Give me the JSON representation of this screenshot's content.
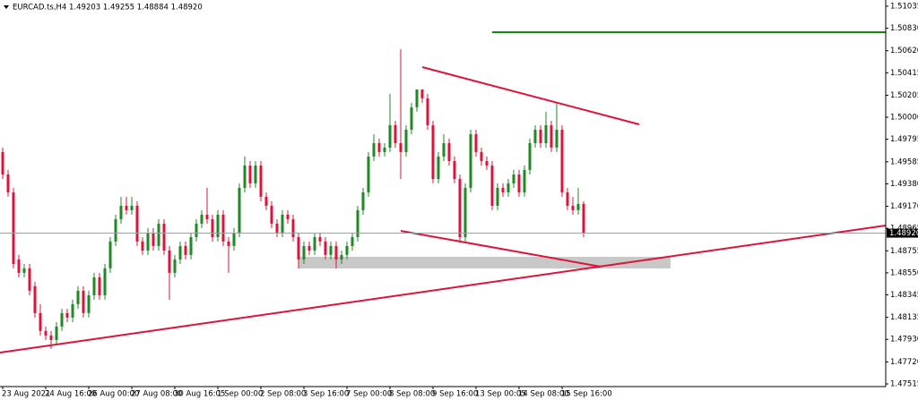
{
  "chart_data": {
    "type": "candlestick",
    "title": "EURCAD.ts,H4  1.49203 1.49255 1.48884 1.48920",
    "up_color": "#1f8a24",
    "down_color": "#dc143c",
    "grid": false,
    "ylim": [
      1.4749,
      1.51093
    ],
    "yticks": [
      1.51035,
      {
        "value": 1.5083,
        "label": "1.50830"
      },
      {
        "value": 1.5062,
        "label": "1.50620"
      },
      1.50415,
      1.50205,
      {
        "value": 1.5,
        "label": "1.50000"
      },
      1.49795,
      1.49585,
      {
        "value": 1.4938,
        "label": "1.49380"
      },
      {
        "value": 1.4917,
        "label": "1.49170"
      },
      1.48965,
      1.48755,
      {
        "value": 1.4855,
        "label": "1.48550"
      },
      1.48345,
      1.48135,
      {
        "value": 1.4793,
        "label": "1.47930"
      },
      {
        "value": 1.4772,
        "label": "1.47720"
      },
      1.47515
    ],
    "current_price": {
      "value": 1.4892,
      "label": "1.48920"
    },
    "categories": [
      "23 Aug 2021",
      null,
      null,
      null,
      null,
      null,
      null,
      null,
      "24 Aug 16:00",
      null,
      null,
      null,
      null,
      null,
      null,
      null,
      "26 Aug 00:00",
      null,
      null,
      null,
      null,
      null,
      null,
      null,
      "27 Aug 08:00",
      null,
      null,
      null,
      null,
      null,
      null,
      null,
      "30 Aug 16:05",
      null,
      null,
      null,
      null,
      null,
      null,
      null,
      "1 Sep 00:00",
      null,
      null,
      null,
      null,
      null,
      null,
      null,
      "2 Sep 08:00",
      null,
      null,
      null,
      null,
      null,
      null,
      null,
      "3 Sep 16:00",
      null,
      null,
      null,
      null,
      null,
      null,
      null,
      "7 Sep 00:00",
      null,
      null,
      null,
      null,
      null,
      null,
      null,
      "8 Sep 08:00",
      null,
      null,
      null,
      null,
      null,
      null,
      null,
      "9 Sep 16:00",
      null,
      null,
      null,
      null,
      null,
      null,
      null,
      "13 Sep 00:05",
      null,
      null,
      null,
      null,
      null,
      null,
      null,
      "14 Sep 08:00",
      null,
      null,
      null,
      null,
      null,
      null,
      null,
      "15 Sep 16:00",
      null,
      null,
      null,
      null
    ],
    "open": [
      1.49676,
      1.49467,
      1.493,
      1.48675,
      1.4855,
      1.48592,
      1.48425,
      1.48175,
      1.48008,
      1.47966,
      1.47924,
      1.48049,
      1.48175,
      1.48133,
      1.48258,
      1.48383,
      1.48175,
      1.48341,
      1.48508,
      1.48341,
      1.48592,
      1.48842,
      1.4905,
      1.49175,
      1.49134,
      1.49175,
      1.48842,
      1.48758,
      1.48925,
      1.488,
      1.49008,
      1.48758,
      1.4855,
      1.48675,
      1.488,
      1.48717,
      1.48883,
      1.49008,
      1.49092,
      1.4905,
      1.48883,
      1.49092,
      1.48842,
      1.488,
      1.48925,
      1.49342,
      1.4955,
      1.49384,
      1.4955,
      1.49259,
      1.49175,
      1.49008,
      1.48925,
      1.49092,
      1.4905,
      1.48883,
      1.48675,
      1.488,
      1.48758,
      1.48883,
      1.48842,
      1.48717,
      1.488,
      1.48675,
      1.48717,
      1.488,
      1.48883,
      1.49134,
      1.493,
      1.49634,
      1.49759,
      1.49676,
      1.49717,
      1.49926,
      1.49759,
      1.49676,
      1.49884,
      1.50093,
      1.50259,
      1.50176,
      1.49926,
      1.49425,
      1.49634,
      1.49759,
      1.49592,
      1.49425,
      1.48883,
      1.49342,
      1.49842,
      1.49676,
      1.49592,
      1.4955,
      1.49175,
      1.49342,
      1.493,
      1.49384,
      1.49467,
      1.493,
      1.49509,
      1.49759,
      1.49884,
      1.49759,
      1.49926,
      1.49717,
      1.49884,
      1.493,
      1.49175,
      1.49134,
      1.49192
    ],
    "high": [
      1.49717,
      1.49509,
      1.49342,
      1.48717,
      1.48633,
      1.48633,
      1.48467,
      1.48258,
      1.48049,
      1.48008,
      1.48091,
      1.48216,
      1.48216,
      1.483,
      1.48425,
      1.48425,
      1.48383,
      1.4855,
      1.4855,
      1.48633,
      1.48883,
      1.49092,
      1.49259,
      1.49259,
      1.49259,
      1.49217,
      1.48883,
      1.48967,
      1.48967,
      1.4905,
      1.4905,
      1.488,
      1.48717,
      1.48842,
      1.48842,
      1.48925,
      1.4905,
      1.49134,
      1.49342,
      1.49092,
      1.49134,
      1.49134,
      1.48883,
      1.48967,
      1.49384,
      1.49634,
      1.49592,
      1.49592,
      1.49592,
      1.493,
      1.49217,
      1.4905,
      1.49134,
      1.49134,
      1.49092,
      1.48925,
      1.48842,
      1.48842,
      1.48925,
      1.48925,
      1.48883,
      1.48842,
      1.48842,
      1.48758,
      1.48842,
      1.48925,
      1.49175,
      1.49342,
      1.49676,
      1.49842,
      1.49801,
      1.49759,
      1.50218,
      1.49967,
      1.50635,
      1.49926,
      1.50134,
      1.50259,
      1.50259,
      1.50218,
      1.49967,
      1.49676,
      1.49842,
      1.49801,
      1.49634,
      1.49467,
      1.49384,
      1.49884,
      1.49884,
      1.49717,
      1.49634,
      1.49592,
      1.49384,
      1.49384,
      1.49425,
      1.49509,
      1.49509,
      1.4955,
      1.49801,
      1.49926,
      1.49926,
      1.50051,
      1.49967,
      1.50134,
      1.49926,
      1.49342,
      1.49259,
      1.49342,
      1.49217
    ],
    "low": [
      1.49425,
      1.49259,
      1.48592,
      1.48508,
      1.48508,
      1.48341,
      1.48133,
      1.47966,
      1.47924,
      1.47841,
      1.47883,
      1.48008,
      1.48091,
      1.48091,
      1.48216,
      1.48133,
      1.48133,
      1.483,
      1.483,
      1.483,
      1.4855,
      1.488,
      1.49008,
      1.49092,
      1.49092,
      1.488,
      1.48717,
      1.48717,
      1.48758,
      1.48758,
      1.48717,
      1.483,
      1.48508,
      1.48633,
      1.48675,
      1.48675,
      1.48842,
      1.48967,
      1.49008,
      1.48842,
      1.48842,
      1.488,
      1.4855,
      1.48758,
      1.48883,
      1.493,
      1.49342,
      1.49342,
      1.49217,
      1.49134,
      1.48967,
      1.48883,
      1.48883,
      1.49008,
      1.48842,
      1.48592,
      1.48633,
      1.48717,
      1.48717,
      1.488,
      1.48675,
      1.48675,
      1.48592,
      1.48633,
      1.48675,
      1.48758,
      1.48842,
      1.49092,
      1.49259,
      1.49592,
      1.49634,
      1.49634,
      1.49676,
      1.49717,
      1.49425,
      1.49634,
      1.49842,
      1.50051,
      1.50134,
      1.49884,
      1.49384,
      1.49384,
      1.49592,
      1.4955,
      1.49384,
      1.48842,
      1.48842,
      1.493,
      1.49634,
      1.4955,
      1.49509,
      1.49134,
      1.49134,
      1.49259,
      1.49259,
      1.49342,
      1.49259,
      1.49259,
      1.49467,
      1.49717,
      1.49717,
      1.49717,
      1.49676,
      1.49676,
      1.49259,
      1.49134,
      1.49092,
      1.49092,
      1.48883
    ],
    "close": [
      1.49467,
      1.493,
      1.48633,
      1.4855,
      1.48592,
      1.48383,
      1.48175,
      1.48008,
      1.47966,
      1.47924,
      1.48049,
      1.48175,
      1.48133,
      1.48258,
      1.48383,
      1.48175,
      1.48341,
      1.48508,
      1.48341,
      1.48592,
      1.48842,
      1.4905,
      1.49175,
      1.49134,
      1.49175,
      1.48842,
      1.48758,
      1.48925,
      1.488,
      1.49008,
      1.48758,
      1.4855,
      1.48675,
      1.488,
      1.48717,
      1.48883,
      1.49008,
      1.49092,
      1.4905,
      1.48883,
      1.49092,
      1.48842,
      1.488,
      1.48925,
      1.49342,
      1.4955,
      1.49384,
      1.4955,
      1.49259,
      1.49175,
      1.49008,
      1.48925,
      1.49092,
      1.4905,
      1.48883,
      1.48675,
      1.488,
      1.48758,
      1.48883,
      1.48842,
      1.48717,
      1.488,
      1.48675,
      1.48717,
      1.488,
      1.48883,
      1.49134,
      1.493,
      1.49634,
      1.49759,
      1.49676,
      1.49717,
      1.49926,
      1.49759,
      1.49676,
      1.49884,
      1.50093,
      1.50259,
      1.50176,
      1.49926,
      1.49425,
      1.49634,
      1.49759,
      1.49592,
      1.49425,
      1.48883,
      1.49342,
      1.49842,
      1.49676,
      1.49592,
      1.4955,
      1.49175,
      1.49342,
      1.493,
      1.49384,
      1.49467,
      1.493,
      1.49509,
      1.49759,
      1.49884,
      1.49759,
      1.49926,
      1.49717,
      1.49884,
      1.493,
      1.49175,
      1.49134,
      1.49192,
      1.4892
    ]
  }
}
